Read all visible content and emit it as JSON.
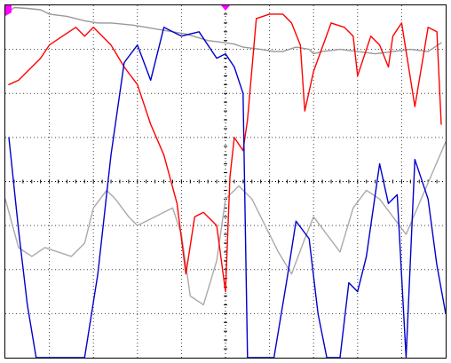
{
  "chart_data": {
    "type": "line",
    "xlim": [
      0,
      10
    ],
    "ylim": [
      0,
      8
    ],
    "x_divisions": 10,
    "y_divisions": 8,
    "grid": true,
    "markers": [
      {
        "name": "trigger-marker-left",
        "color": "#ff00ff"
      },
      {
        "name": "trigger-marker-top",
        "color": "#ff00ff"
      }
    ],
    "series": [
      {
        "color": "#999999",
        "x": [
          0.08,
          0.2,
          0.5,
          0.8,
          1.0,
          1.4,
          1.8,
          2.1,
          2.4,
          2.9,
          3.5,
          4.1,
          4.6,
          5.0,
          5.2,
          5.4,
          5.8,
          6.1,
          6.3,
          6.6,
          6.9,
          7.0,
          7.2,
          7.6,
          8.0,
          8.4,
          8.8,
          9.2,
          9.6,
          9.9
        ],
        "y": [
          7.85,
          7.95,
          7.93,
          7.9,
          7.8,
          7.75,
          7.65,
          7.6,
          7.6,
          7.55,
          7.45,
          7.35,
          7.2,
          7.15,
          7.12,
          7.05,
          7.0,
          6.95,
          6.95,
          7.05,
          7.0,
          6.9,
          6.95,
          7.0,
          6.95,
          6.9,
          6.95,
          7.0,
          6.95,
          7.15
        ]
      },
      {
        "color": "#aaaaaa",
        "x": [
          0.0,
          0.3,
          0.6,
          0.9,
          1.2,
          1.5,
          1.8,
          2.0,
          2.3,
          2.5,
          2.8,
          3.0,
          3.4,
          3.8,
          4.0,
          4.2,
          4.5,
          4.8,
          5.0,
          5.3,
          5.6,
          5.9,
          6.2,
          6.5,
          6.8,
          7.0,
          7.3,
          7.6,
          7.9,
          8.2,
          8.5,
          8.8,
          9.1,
          9.4,
          9.7,
          10.0
        ],
        "y": [
          3.6,
          2.5,
          2.3,
          2.5,
          2.4,
          2.3,
          2.6,
          3.4,
          3.8,
          3.6,
          3.2,
          3.0,
          3.2,
          3.4,
          2.8,
          1.4,
          1.2,
          2.2,
          3.6,
          3.9,
          3.6,
          3.0,
          2.4,
          1.9,
          2.7,
          3.2,
          2.8,
          2.4,
          3.4,
          3.8,
          3.6,
          3.2,
          2.8,
          3.5,
          4.2,
          4.9
        ]
      },
      {
        "color": "#ff0000",
        "x": [
          0.08,
          0.3,
          0.6,
          0.8,
          1.0,
          1.3,
          1.6,
          1.8,
          2.0,
          2.2,
          2.4,
          2.7,
          3.0,
          3.3,
          3.6,
          3.9,
          4.1,
          4.3,
          4.5,
          4.8,
          5.0,
          5.1,
          5.2,
          5.4,
          5.5,
          5.7,
          6.0,
          6.3,
          6.5,
          6.7,
          6.8,
          7.0,
          7.4,
          7.7,
          7.9,
          8.0,
          8.3,
          8.5,
          8.7,
          8.8,
          9.0,
          9.3,
          9.6,
          9.8,
          9.9
        ],
        "y": [
          6.2,
          6.3,
          6.6,
          6.8,
          7.1,
          7.3,
          7.5,
          7.3,
          7.5,
          7.3,
          7.1,
          6.6,
          6.2,
          5.3,
          4.6,
          3.5,
          1.9,
          3.2,
          3.3,
          3.0,
          1.5,
          4.1,
          5.0,
          4.7,
          5.4,
          7.7,
          7.8,
          7.8,
          7.6,
          7.1,
          5.6,
          6.5,
          7.6,
          7.5,
          7.3,
          6.4,
          7.3,
          7.1,
          6.6,
          7.3,
          7.6,
          5.7,
          7.5,
          7.4,
          5.3
        ]
      },
      {
        "color": "#0000cc",
        "x": [
          0.08,
          0.3,
          0.5,
          0.7,
          1.0,
          1.4,
          1.8,
          2.1,
          2.4,
          2.7,
          3.0,
          3.3,
          3.6,
          4.0,
          4.4,
          4.8,
          5.0,
          5.2,
          5.4,
          5.5,
          5.6,
          5.8,
          6.1,
          6.4,
          6.6,
          6.9,
          7.1,
          7.3,
          7.6,
          7.8,
          8.0,
          8.2,
          8.5,
          8.7,
          8.9,
          9.1,
          9.3,
          9.6,
          9.8,
          10.0
        ],
        "y": [
          5.0,
          2.9,
          1.2,
          0.0,
          0.0,
          0.0,
          0.0,
          1.9,
          4.6,
          6.7,
          7.1,
          6.3,
          7.5,
          7.3,
          7.4,
          6.8,
          6.9,
          6.6,
          6.0,
          0.0,
          0.0,
          0.0,
          0.0,
          1.8,
          3.1,
          2.7,
          1.0,
          0.0,
          0.0,
          1.7,
          1.5,
          2.3,
          4.4,
          3.5,
          3.7,
          0.0,
          4.5,
          3.6,
          2.1,
          1.0
        ]
      }
    ]
  }
}
